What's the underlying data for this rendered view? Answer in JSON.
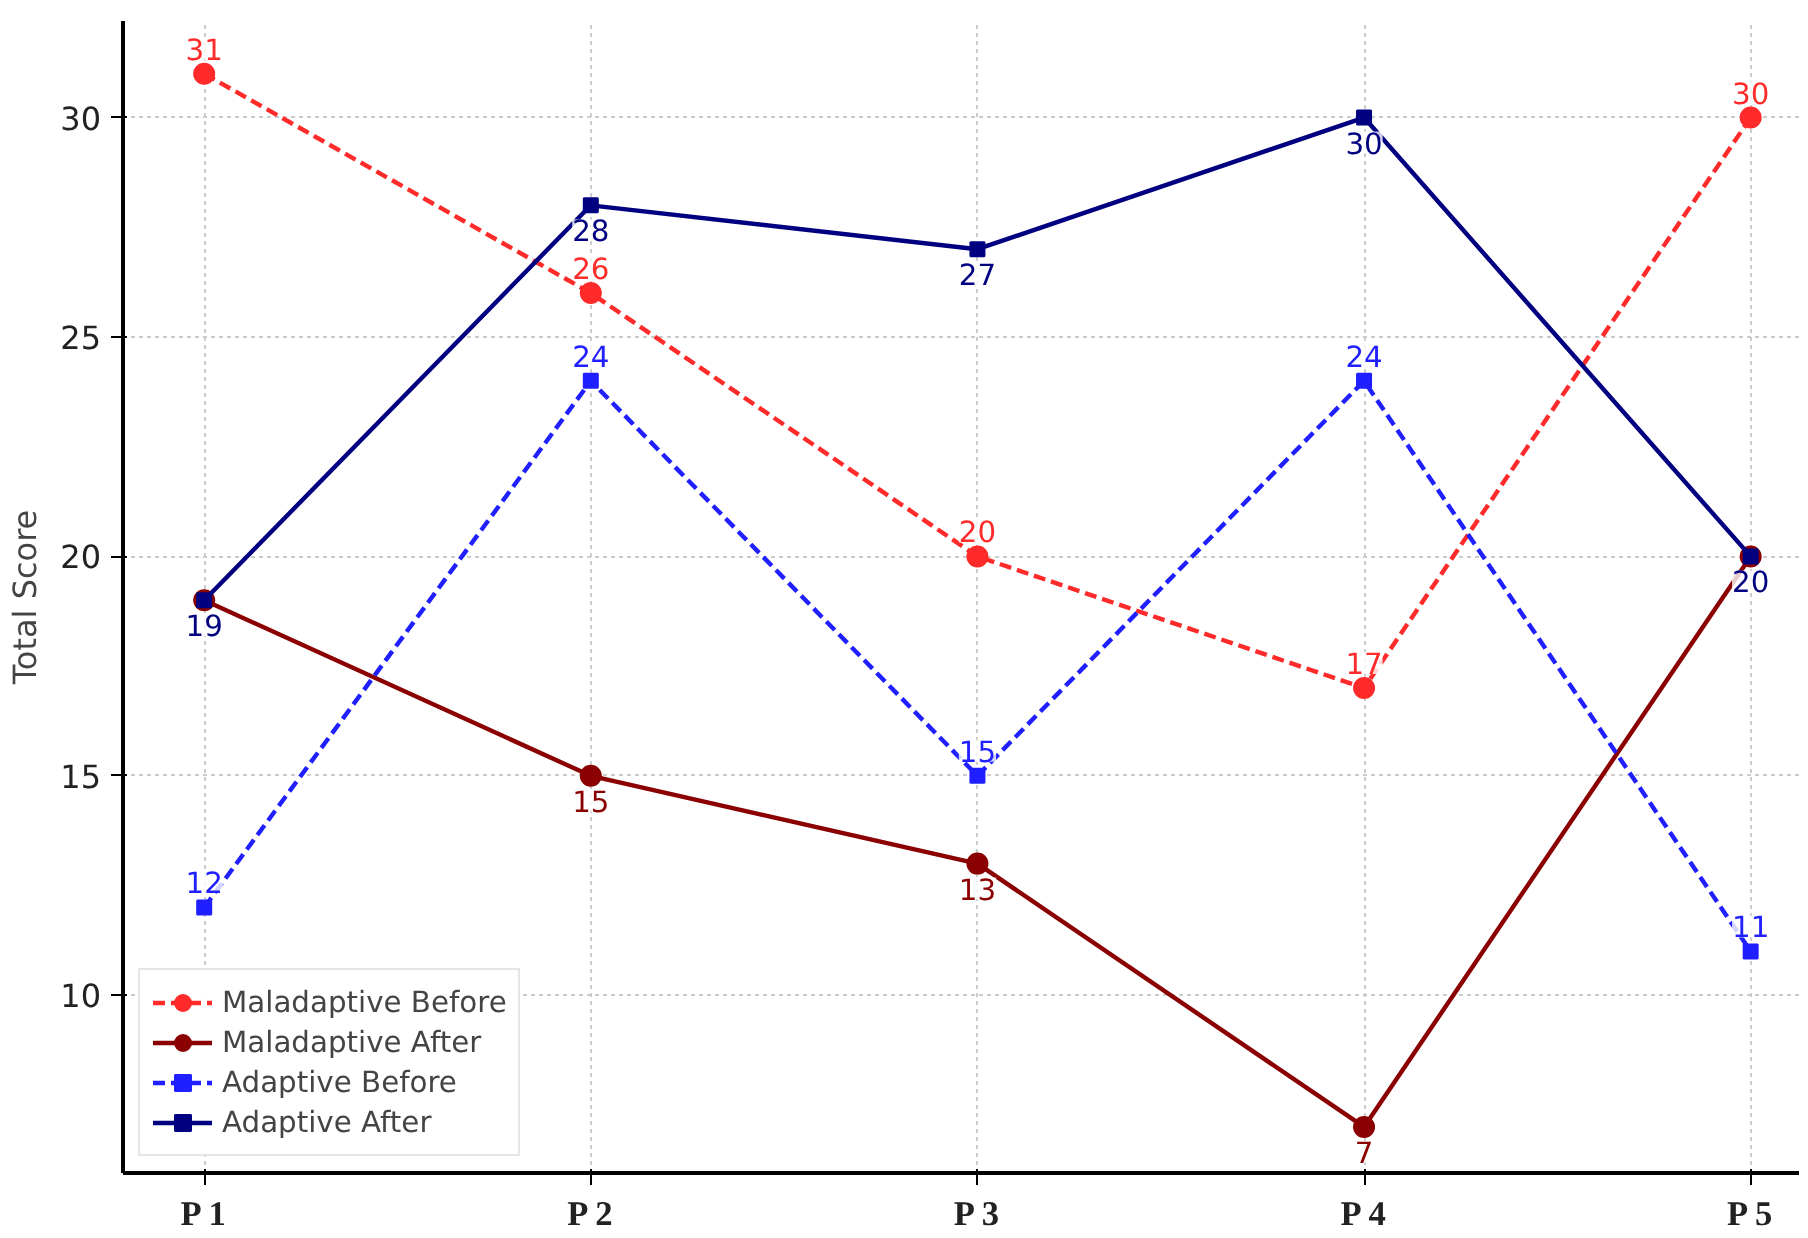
{
  "chart_data": {
    "type": "line",
    "ylabel": "Total Score",
    "categories": [
      "P 1",
      "P 2",
      "P 3",
      "P 4",
      "P 5"
    ],
    "series": [
      {
        "name": "Maladaptive Before",
        "color": "#ff2a2a",
        "values": [
          31,
          26,
          20,
          17,
          30
        ],
        "marker": "circle",
        "line_style": "dashed"
      },
      {
        "name": "Maladaptive After",
        "color": "#8b0000",
        "values": [
          19,
          15,
          13,
          7,
          20
        ],
        "value_labels": [
          null,
          "15",
          "13",
          "7",
          null
        ],
        "marker": "circle",
        "line_style": "solid"
      },
      {
        "name": "Adaptive Before",
        "color": "#1f1fff",
        "values": [
          12,
          24,
          15,
          24,
          11
        ],
        "marker": "square",
        "line_style": "dashed"
      },
      {
        "name": "Adaptive After",
        "color": "#000080",
        "values": [
          19,
          28,
          27,
          30,
          20
        ],
        "marker": "square",
        "line_style": "solid"
      }
    ],
    "ylim": [
      5.95,
      32.2
    ],
    "yticks": [
      10,
      15,
      20,
      25,
      30
    ],
    "grid": true,
    "legend": "bottom left",
    "data_labels": true
  }
}
